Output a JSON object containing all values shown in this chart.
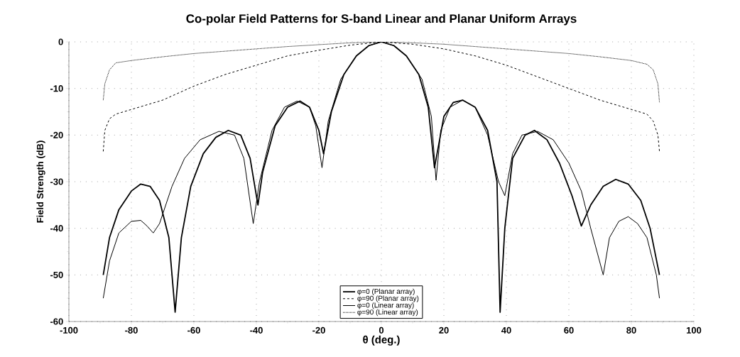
{
  "chart_data": {
    "type": "line",
    "title": "Co-polar Field Patterns for S-band Linear and Planar Uniform Arrays",
    "xlabel": "θ (deg.)",
    "ylabel": "Field Strength (dB)",
    "xlim": [
      -100,
      100
    ],
    "ylim": [
      -60,
      0
    ],
    "xticks": [
      -100,
      -80,
      -60,
      -40,
      -20,
      0,
      20,
      40,
      60,
      80,
      100
    ],
    "yticks": [
      -60,
      -50,
      -40,
      -30,
      -20,
      -10,
      0
    ],
    "grid": true,
    "legend": "bottom",
    "series": [
      {
        "name": "φ=0 (Planar array)",
        "color": "#000000",
        "line_style": "solid",
        "x": [
          -89,
          -87,
          -84,
          -80,
          -77,
          -74,
          -71,
          -68,
          -66,
          -64,
          -61,
          -57,
          -53,
          -49,
          -45,
          -42,
          -39.5,
          -38,
          -34,
          -30,
          -26,
          -23,
          -20,
          -18.5,
          -16,
          -12,
          -8,
          -4,
          0,
          4,
          8,
          12,
          15,
          17,
          20,
          23,
          26,
          30,
          34,
          37,
          38,
          39.5,
          42,
          46,
          49,
          53,
          57,
          61,
          64,
          67,
          71,
          75,
          79,
          83,
          86,
          89
        ],
        "values": [
          -50,
          -42,
          -36,
          -32,
          -30.5,
          -31,
          -34,
          -42,
          -58,
          -42,
          -31,
          -24,
          -20.5,
          -19,
          -20,
          -25,
          -35,
          -28,
          -18,
          -14,
          -12.7,
          -14,
          -19,
          -24,
          -15,
          -7,
          -3,
          -0.8,
          0,
          -0.8,
          -3,
          -7,
          -14,
          -27,
          -16,
          -13,
          -12.5,
          -14,
          -19,
          -30,
          -58,
          -40,
          -25,
          -20,
          -19,
          -21,
          -26,
          -33,
          -39.5,
          -35,
          -31,
          -29.5,
          -30.5,
          -34,
          -40,
          -50
        ]
      },
      {
        "name": "φ=90 (Planar array)",
        "color": "#000000",
        "line_style": "dashed",
        "x": [
          -89,
          -88.5,
          -87,
          -85,
          -80,
          -70,
          -60,
          -50,
          -40,
          -30,
          -20,
          -10,
          0,
          10,
          20,
          30,
          40,
          50,
          60,
          70,
          80,
          85,
          87,
          88.5,
          89
        ],
        "values": [
          -23.5,
          -19,
          -16.5,
          -15.5,
          -14.5,
          -12.5,
          -9.5,
          -7,
          -5,
          -3,
          -1.8,
          -0.7,
          0,
          -0.5,
          -1.5,
          -3,
          -5,
          -7.5,
          -10,
          -12.5,
          -14.5,
          -15.5,
          -17,
          -20,
          -23.5
        ]
      },
      {
        "name": "φ=0 (Linear array)",
        "color": "#000000",
        "line_style": "solid",
        "x": [
          -89,
          -87,
          -84,
          -80,
          -77,
          -75,
          -73,
          -71,
          -67,
          -63,
          -58,
          -52,
          -47,
          -44,
          -41,
          -39,
          -35,
          -31,
          -27,
          -23,
          -21,
          -19,
          -17,
          -13,
          -8,
          -4,
          0,
          4,
          8,
          13,
          16,
          17.5,
          19,
          22,
          26,
          30,
          34,
          37.5,
          39.5,
          42,
          45,
          50,
          55,
          60,
          64,
          67,
          71,
          73,
          76,
          79,
          82,
          85,
          88,
          89
        ],
        "values": [
          -55,
          -47,
          -41,
          -38.5,
          -38.3,
          -39.5,
          -41,
          -39,
          -31,
          -25,
          -21,
          -19.2,
          -20,
          -25,
          -39,
          -30,
          -19,
          -14,
          -12.7,
          -14,
          -18,
          -27,
          -17,
          -8,
          -3,
          -0.8,
          0,
          -0.8,
          -3,
          -8,
          -16,
          -29.7,
          -19,
          -14,
          -12.5,
          -14,
          -20,
          -30,
          -33,
          -24,
          -20,
          -19.2,
          -21,
          -26,
          -32,
          -40,
          -50,
          -42,
          -38.5,
          -37.5,
          -39,
          -42,
          -50,
          -55
        ]
      },
      {
        "name": "φ=90 (Linear array)",
        "color": "#000000",
        "line_style": "dotted",
        "x": [
          -89,
          -88.5,
          -87,
          -85,
          -80,
          -70,
          -60,
          -50,
          -40,
          -30,
          -20,
          -10,
          0,
          10,
          20,
          30,
          40,
          50,
          60,
          70,
          80,
          85,
          87,
          88.5,
          89
        ],
        "values": [
          -12.5,
          -9,
          -6,
          -4.5,
          -4,
          -3.2,
          -2.5,
          -2,
          -1.5,
          -1,
          -0.6,
          -0.2,
          0,
          -0.2,
          -0.5,
          -1,
          -1.5,
          -2,
          -2.5,
          -3.2,
          -4,
          -4.8,
          -6,
          -9,
          -13
        ]
      }
    ]
  }
}
